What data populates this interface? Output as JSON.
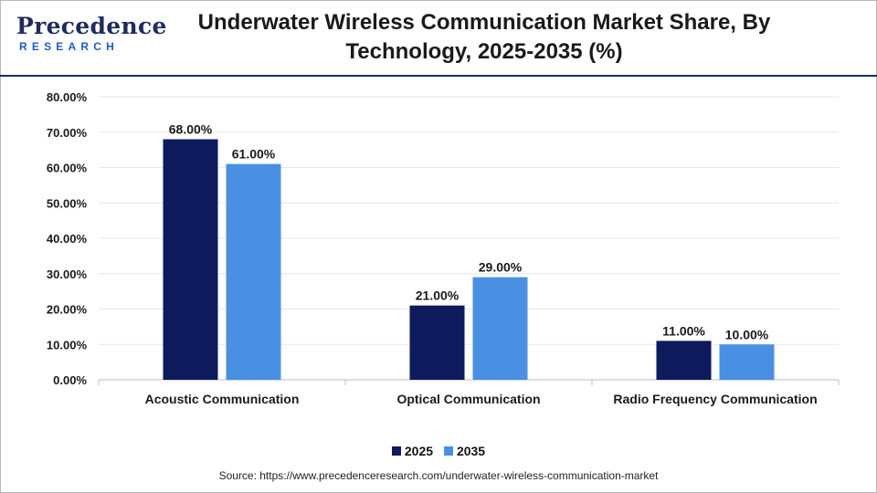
{
  "header": {
    "logo_word": "Precedence",
    "logo_sub": "RESEARCH",
    "title_line1": "Underwater Wireless Communication Market Share, By",
    "title_line2": "Technology, 2025-2035 (%)"
  },
  "source_text": "Source: https://www.precedenceresearch.com/underwater-wireless-communication-market",
  "colors": {
    "series_2025": "#0d1a5c",
    "series_2035": "#4a90e2",
    "brand_navy": "#1f2b5e",
    "brand_blue": "#1f5fbf"
  },
  "chart_data": {
    "type": "bar",
    "title": "Underwater Wireless Communication Market Share, By Technology, 2025-2035 (%)",
    "categories": [
      "Acoustic Communication",
      "Optical Communication",
      "Radio Frequency Communication"
    ],
    "series": [
      {
        "name": "2025",
        "values": [
          68.0,
          21.0,
          11.0
        ],
        "labels": [
          "68.00%",
          "21.00%",
          "11.00%"
        ],
        "color": "#0d1a5c"
      },
      {
        "name": "2035",
        "values": [
          61.0,
          29.0,
          10.0
        ],
        "labels": [
          "61.00%",
          "29.00%",
          "10.00%"
        ],
        "color": "#4a90e2"
      }
    ],
    "ylim": [
      0,
      80
    ],
    "yticks": [
      0,
      10,
      20,
      30,
      40,
      50,
      60,
      70,
      80
    ],
    "ytick_labels": [
      "0.00%",
      "10.00%",
      "20.00%",
      "30.00%",
      "40.00%",
      "50.00%",
      "60.00%",
      "70.00%",
      "80.00%"
    ],
    "grid": true,
    "legend_position": "bottom-center"
  }
}
